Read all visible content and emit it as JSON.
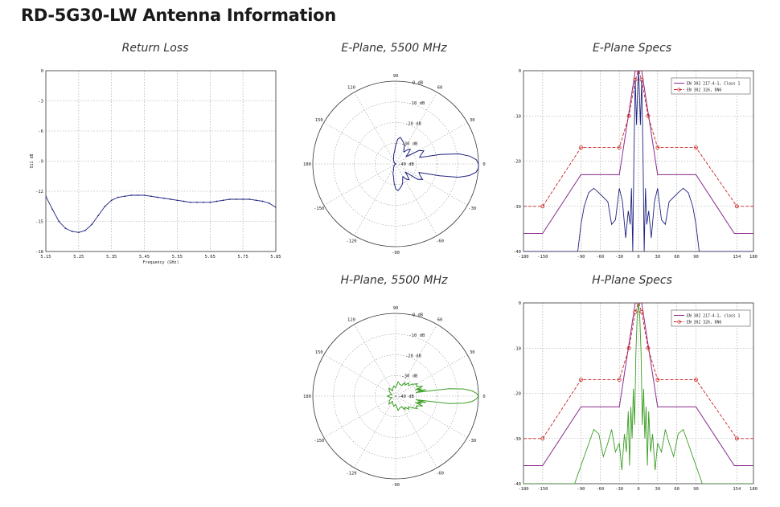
{
  "page": {
    "title": "RD-5G30-LW Antenna Information"
  },
  "panels": {
    "return_loss": "Return Loss",
    "e_plane_polar": "E-Plane, 5500 MHz",
    "e_plane_specs": "E-Plane Specs",
    "h_plane_polar": "H-Plane, 5500 MHz",
    "h_plane_specs": "H-Plane Specs"
  },
  "colors": {
    "navy": "#1f2280",
    "green": "#3a9d23",
    "purple": "#8a2a8a",
    "red": "#cc2222",
    "grid": "#9a9a9a"
  },
  "chart_data": [
    {
      "id": "return_loss",
      "type": "line",
      "title": "Return Loss",
      "xlabel": "Frequency (GHz)",
      "ylabel": "S11 dB",
      "xlim": [
        5.15,
        5.85
      ],
      "ylim": [
        -18,
        0
      ],
      "xticks": [
        "5.15",
        "5.25",
        "5.35",
        "5.45",
        "5.55",
        "5.65",
        "5.75",
        "5.85"
      ],
      "yticks": [
        "0",
        "-3",
        "-6",
        "-9",
        "-12",
        "-15",
        "-18"
      ],
      "grid": true,
      "series": [
        {
          "x": [
            5.15,
            5.17,
            5.19,
            5.21,
            5.23,
            5.25,
            5.27,
            5.29,
            5.31,
            5.33,
            5.35,
            5.37,
            5.39,
            5.41,
            5.43,
            5.45,
            5.47,
            5.49,
            5.51,
            5.53,
            5.55,
            5.57,
            5.59,
            5.61,
            5.63,
            5.65,
            5.67,
            5.69,
            5.71,
            5.73,
            5.75,
            5.77,
            5.79,
            5.81,
            5.83,
            5.85
          ],
          "y": [
            -12.5,
            -13.8,
            -15.0,
            -15.7,
            -16.0,
            -16.1,
            -15.9,
            -15.3,
            -14.4,
            -13.5,
            -12.9,
            -12.6,
            -12.5,
            -12.4,
            -12.4,
            -12.4,
            -12.5,
            -12.6,
            -12.7,
            -12.8,
            -12.9,
            -13.0,
            -13.1,
            -13.1,
            -13.1,
            -13.1,
            -13.0,
            -12.9,
            -12.8,
            -12.8,
            -12.8,
            -12.8,
            -12.9,
            -13.0,
            -13.2,
            -13.6
          ]
        }
      ]
    },
    {
      "id": "e_polar",
      "type": "polar",
      "title": "E-Plane, 5500 MHz",
      "rings": [
        "0 dB",
        "-10 dB",
        "-20 dB",
        "-30 dB",
        "-40 dB"
      ],
      "angle_labels": [
        "0",
        "30",
        "60",
        "90",
        "120",
        "150",
        "180",
        "-150",
        "-120",
        "-90",
        "-60",
        "-30"
      ],
      "series": [
        {
          "angle_deg": [
            0,
            3,
            6,
            9,
            12,
            15,
            20,
            25,
            30,
            35,
            40,
            45,
            50,
            55,
            60,
            65,
            70,
            75,
            80,
            85,
            90,
            95,
            100,
            110,
            120,
            130,
            140,
            150,
            160,
            170,
            180,
            190,
            200,
            210,
            220,
            230,
            240,
            250,
            255,
            260,
            265,
            270,
            275,
            280,
            285,
            290,
            295,
            300,
            305,
            310,
            315,
            320,
            325,
            330,
            335,
            340,
            345,
            348,
            351,
            354,
            357
          ],
          "gain_db": [
            0,
            -1,
            -4,
            -9,
            -18,
            -28,
            -27,
            -25,
            -27,
            -34,
            -32,
            -30,
            -31,
            -33,
            -32,
            -30,
            -29,
            -28,
            -27,
            -28,
            -31,
            -34,
            -35,
            -37,
            -38,
            -39,
            -39,
            -40,
            -40,
            -40,
            -40,
            -40,
            -40,
            -40,
            -39,
            -39,
            -38,
            -37,
            -35,
            -34,
            -31,
            -28,
            -27,
            -28,
            -29,
            -30,
            -32,
            -33,
            -31,
            -30,
            -32,
            -34,
            -27,
            -25,
            -27,
            -28,
            -18,
            -9,
            -4,
            -1,
            0
          ]
        }
      ]
    },
    {
      "id": "e_specs",
      "type": "line",
      "title": "E-Plane Specs",
      "xlim": [
        -180,
        180
      ],
      "ylim": [
        -40,
        0
      ],
      "xticks": [
        "-180",
        "-150",
        "-90",
        "-60",
        "-30",
        "0",
        "30",
        "60",
        "90",
        "154",
        "180"
      ],
      "yticks": [
        "0",
        "-10",
        "-20",
        "-30",
        "-40"
      ],
      "legend": [
        "EN 302 217-4-1, Class 1",
        "EN 302 326, DN6"
      ],
      "legend_placement": "top-right",
      "grid": true,
      "series": [
        {
          "name": "EN 302 217-4-1, Class 1",
          "x": [
            -180,
            -170,
            -150,
            -90,
            -30,
            -5,
            5,
            30,
            90,
            150,
            170,
            180
          ],
          "y": [
            -36,
            -36,
            -36,
            -23,
            -23,
            0,
            0,
            -23,
            -23,
            -36,
            -36,
            -36
          ]
        },
        {
          "name": "EN 302 326, DN6",
          "x": [
            -180,
            -150,
            -90,
            -30,
            -15,
            -5,
            0,
            5,
            15,
            30,
            90,
            154,
            180
          ],
          "y": [
            -30,
            -30,
            -17,
            -17,
            -10,
            -2,
            0,
            -2,
            -10,
            -17,
            -17,
            -30,
            -30
          ]
        },
        {
          "x": [
            -180,
            -95,
            -90,
            -85,
            -78,
            -70,
            -62,
            -55,
            -48,
            -42,
            -36,
            -30,
            -25,
            -20,
            -16,
            -13,
            -11,
            -9,
            -7,
            -5,
            -3,
            -1,
            0,
            1,
            3,
            5,
            7,
            9,
            11,
            13,
            16,
            20,
            25,
            30,
            36,
            42,
            48,
            55,
            62,
            70,
            78,
            85,
            90,
            95,
            180
          ],
          "y": [
            -40,
            -40,
            -34,
            -30,
            -27,
            -26,
            -27,
            -28,
            -29,
            -34,
            -33,
            -26,
            -29,
            -37,
            -31,
            -34,
            -26,
            -40,
            -18,
            -2,
            -12,
            -3,
            0,
            -3,
            -12,
            -2,
            -18,
            -40,
            -26,
            -34,
            -31,
            -37,
            -29,
            -26,
            -33,
            -34,
            -29,
            -28,
            -27,
            -26,
            -27,
            -30,
            -34,
            -40,
            -40
          ]
        }
      ]
    },
    {
      "id": "h_polar",
      "type": "polar",
      "title": "H-Plane, 5500 MHz",
      "rings": [
        "0 dB",
        "-10 dB",
        "-20 dB",
        "-30 dB",
        "-40 dB"
      ],
      "angle_labels": [
        "0",
        "30",
        "60",
        "90",
        "120",
        "150",
        "180",
        "-150",
        "-120",
        "-90",
        "-60",
        "-30"
      ],
      "series": [
        {
          "angle_deg": [
            0,
            2,
            4,
            6,
            8,
            10,
            12,
            14,
            16,
            18,
            20,
            25,
            30,
            35,
            40,
            45,
            50,
            55,
            60,
            70,
            80,
            90,
            100,
            110,
            120,
            130,
            140,
            150,
            160,
            170,
            180,
            190,
            200,
            210,
            220,
            230,
            240,
            250,
            260,
            270,
            280,
            290,
            300,
            305,
            310,
            315,
            320,
            325,
            330,
            335,
            340,
            342,
            344,
            346,
            348,
            350,
            352,
            354,
            356,
            358
          ],
          "gain_db": [
            0,
            -1,
            -3,
            -7,
            -14,
            -30,
            -25,
            -29,
            -27,
            -30,
            -26,
            -29,
            -28,
            -30,
            -32,
            -31,
            -33,
            -32,
            -34,
            -34,
            -33,
            -36,
            -35,
            -36,
            -37,
            -35,
            -36,
            -37,
            -38,
            -37,
            -36,
            -37,
            -38,
            -37,
            -36,
            -35,
            -37,
            -36,
            -35,
            -36,
            -33,
            -34,
            -34,
            -32,
            -33,
            -31,
            -32,
            -30,
            -28,
            -29,
            -26,
            -30,
            -27,
            -29,
            -25,
            -30,
            -14,
            -7,
            -3,
            -1
          ]
        }
      ]
    },
    {
      "id": "h_specs",
      "type": "line",
      "title": "H-Plane Specs",
      "xlim": [
        -180,
        180
      ],
      "ylim": [
        -40,
        0
      ],
      "xticks": [
        "-180",
        "-150",
        "-90",
        "-60",
        "-30",
        "0",
        "30",
        "60",
        "90",
        "154",
        "180"
      ],
      "yticks": [
        "0",
        "-10",
        "-20",
        "-30",
        "-40"
      ],
      "legend": [
        "EN 302 217-4-1, class 1",
        "EN 302 326, DN6"
      ],
      "legend_placement": "top-right",
      "grid": true,
      "series": [
        {
          "name": "EN 302 217-4-1, class 1",
          "x": [
            -180,
            -170,
            -150,
            -90,
            -30,
            -5,
            5,
            30,
            90,
            150,
            170,
            180
          ],
          "y": [
            -36,
            -36,
            -36,
            -23,
            -23,
            0,
            0,
            -23,
            -23,
            -36,
            -36,
            -36
          ]
        },
        {
          "name": "EN 302 326, DN6",
          "x": [
            -180,
            -150,
            -90,
            -30,
            -15,
            -5,
            0,
            5,
            15,
            30,
            90,
            154,
            180
          ],
          "y": [
            -30,
            -30,
            -17,
            -17,
            -10,
            -2,
            0,
            -2,
            -10,
            -17,
            -17,
            -30,
            -30
          ]
        },
        {
          "x": [
            -180,
            -100,
            -90,
            -80,
            -70,
            -62,
            -55,
            -48,
            -42,
            -36,
            -30,
            -26,
            -22,
            -19,
            -16,
            -14,
            -12,
            -10,
            -8,
            -6,
            -4,
            -2,
            0,
            2,
            4,
            6,
            8,
            10,
            12,
            14,
            16,
            19,
            22,
            26,
            30,
            36,
            42,
            48,
            55,
            62,
            70,
            80,
            90,
            100,
            180
          ],
          "y": [
            -40,
            -40,
            -36,
            -32,
            -28,
            -29,
            -34,
            -31,
            -28,
            -33,
            -31,
            -37,
            -29,
            -33,
            -24,
            -36,
            -23,
            -30,
            -19,
            -27,
            -11,
            -3,
            0,
            -3,
            -11,
            -27,
            -19,
            -30,
            -23,
            -36,
            -24,
            -33,
            -29,
            -37,
            -31,
            -33,
            -28,
            -31,
            -34,
            -29,
            -28,
            -32,
            -36,
            -40,
            -40
          ]
        }
      ]
    }
  ]
}
